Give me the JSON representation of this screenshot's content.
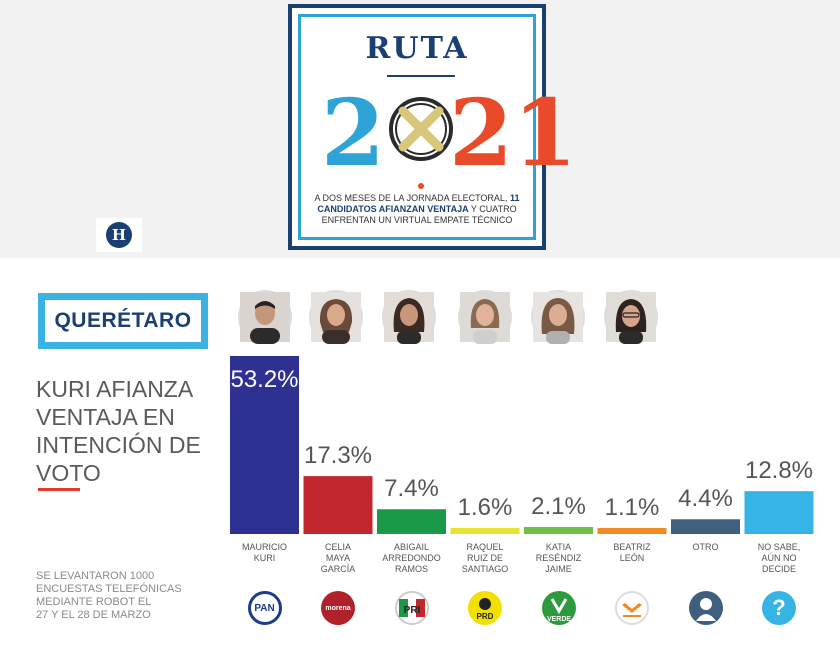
{
  "header": {
    "ruta": "RUTA",
    "year_prefix": "2",
    "year_suffix": "21",
    "text_1": "A DOS MESES DE LA JORNADA ELECTORAL, ",
    "text_bold": "11 CANDIDATOS AFIANZAN VENTAJA",
    "text_2": " Y CUATRO ENFRENTAN UN VIRTUAL EMPATE TÉCNICO",
    "logo_letter": "H",
    "colors": {
      "navy": "#1a3f73",
      "teal": "#2ea3d6",
      "orange": "#e84a2a"
    }
  },
  "state": "QUERÉTARO",
  "headline": [
    "KURI AFIANZA",
    "VENTAJA EN",
    "INTENCIÓN DE VOTO"
  ],
  "footnote": [
    "SE LEVANTARON 1000",
    "ENCUESTAS TELEFÓNICAS",
    "MEDIANTE ROBOT EL",
    "27 Y EL 28 DE MARZO"
  ],
  "chart_data": {
    "type": "bar",
    "ylim": [
      0,
      60
    ],
    "unit": "%",
    "categories": [
      [
        "MAURICIO",
        "KURI"
      ],
      [
        "CELIA",
        "MAYA",
        "GARCÍA"
      ],
      [
        "ABIGAIL",
        "ARREDONDO",
        "RAMOS"
      ],
      [
        "RAQUEL",
        "RUIZ DE",
        "SANTIAGO"
      ],
      [
        "KATIA",
        "RESÉNDIZ",
        "JAIME"
      ],
      [
        "BEATRIZ",
        "LEÓN"
      ],
      [
        "OTRO"
      ],
      [
        "NO SABE,",
        "AÚN NO",
        "DECIDE"
      ]
    ],
    "values": [
      53.2,
      17.3,
      7.4,
      1.6,
      2.1,
      1.1,
      4.4,
      12.8
    ],
    "value_labels": [
      "53.2%",
      "17.3%",
      "7.4%",
      "1.6%",
      "2.1%",
      "1.1%",
      "4.4%",
      "12.8%"
    ],
    "colors": [
      "#2e3192",
      "#c1272d",
      "#1a9a48",
      "#e8e230",
      "#6fbf44",
      "#f08a24",
      "#3f5f7f",
      "#36b4e5"
    ],
    "parties": [
      {
        "name": "pan-logo",
        "text": "PAN",
        "bg": "#ffffff",
        "fg": "#1b3c8c"
      },
      {
        "name": "morena-logo",
        "text": "morena",
        "bg": "#b0222a",
        "fg": "#ffffff"
      },
      {
        "name": "pri-logo",
        "text": "PRI",
        "bg": "#ffffff",
        "fg": "#1a9a48"
      },
      {
        "name": "prd-logo",
        "text": "PRD",
        "bg": "#f2e000",
        "fg": "#222222"
      },
      {
        "name": "verde-logo",
        "text": "VERDE",
        "bg": "#2d9a3e",
        "fg": "#ffffff"
      },
      {
        "name": "mc-logo",
        "text": "",
        "bg": "#ffffff",
        "fg": "#f08a24"
      },
      {
        "name": "person-icon",
        "text": "",
        "bg": "#3f5f7f",
        "fg": "#ffffff"
      },
      {
        "name": "question-icon",
        "text": "?",
        "bg": "#36b4e5",
        "fg": "#ffffff"
      }
    ]
  }
}
